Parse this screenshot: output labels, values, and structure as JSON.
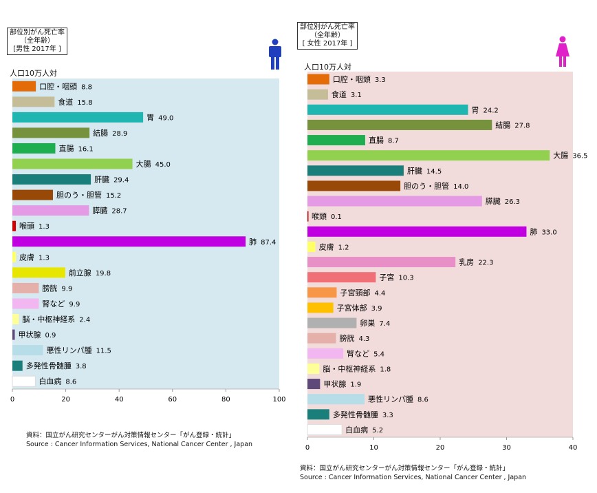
{
  "chart_data": [
    {
      "type": "bar",
      "orientation": "horizontal",
      "title": [
        "部位別がん死亡率",
        "（全年齢）",
        "[男性 2017年 ]"
      ],
      "unit_label": "人口10万人対",
      "xlim": [
        0,
        100
      ],
      "xticks": [
        0,
        20,
        40,
        60,
        80,
        100
      ],
      "background": "#d6e9f0",
      "source": [
        "資料：国立がん研究センターがん対策情報センター「がん登録・統計」",
        "Source : Cancer Information Services, National Cancer Center , Japan"
      ],
      "bars": [
        {
          "label": "口腔・咽頭",
          "value": 8.8,
          "color": "#e36c09"
        },
        {
          "label": "食道",
          "value": 15.8,
          "color": "#c4bd97"
        },
        {
          "label": "胃",
          "value": 49.0,
          "color": "#1fb5b0"
        },
        {
          "label": "結腸",
          "value": 28.9,
          "color": "#76923c"
        },
        {
          "label": "直腸",
          "value": 16.1,
          "color": "#1fae4f"
        },
        {
          "label": "大腸",
          "value": 45.0,
          "color": "#92d050"
        },
        {
          "label": "肝臓",
          "value": 29.4,
          "color": "#1a7f7a"
        },
        {
          "label": "胆のう・胆管",
          "value": 15.2,
          "color": "#984807"
        },
        {
          "label": "膵臓",
          "value": 28.7,
          "color": "#e49ae4"
        },
        {
          "label": "喉頭",
          "value": 1.3,
          "color": "#d00000"
        },
        {
          "label": "肺",
          "value": 87.4,
          "color": "#c000e0"
        },
        {
          "label": "皮膚",
          "value": 1.3,
          "color": "#ffff66"
        },
        {
          "label": "前立腺",
          "value": 19.8,
          "color": "#e6e600"
        },
        {
          "label": "膀胱",
          "value": 9.9,
          "color": "#e6b0aa"
        },
        {
          "label": "腎など",
          "value": 9.9,
          "color": "#f2b6f0"
        },
        {
          "label": "脳・中枢神経系",
          "value": 2.4,
          "color": "#ffff99"
        },
        {
          "label": "甲状腺",
          "value": 0.9,
          "color": "#5f497a"
        },
        {
          "label": "悪性リンパ腫",
          "value": 11.5,
          "color": "#b7dde8"
        },
        {
          "label": "多発性骨髄腫",
          "value": 3.8,
          "color": "#1a7f7a"
        },
        {
          "label": "白血病",
          "value": 8.6,
          "color": "#ffffff"
        }
      ]
    },
    {
      "type": "bar",
      "orientation": "horizontal",
      "title": [
        "部位別がん死亡率",
        "（全年齢）",
        "[ 女性 2017年 ]"
      ],
      "unit_label": "人口10万人対",
      "xlim": [
        0,
        40
      ],
      "xticks": [
        0,
        10,
        20,
        30,
        40
      ],
      "background": "#f2dcdb",
      "source": [
        "資料：国立がん研究センターがん対策情報センター「がん登録・統計」",
        "Source : Cancer Information Services, National Cancer Center , Japan"
      ],
      "bars": [
        {
          "label": "口腔・咽頭",
          "value": 3.3,
          "color": "#e36c09"
        },
        {
          "label": "食道",
          "value": 3.1,
          "color": "#c4bd97"
        },
        {
          "label": "胃",
          "value": 24.2,
          "color": "#1fb5b0"
        },
        {
          "label": "結腸",
          "value": 27.8,
          "color": "#76923c"
        },
        {
          "label": "直腸",
          "value": 8.7,
          "color": "#1fae4f"
        },
        {
          "label": "大腸",
          "value": 36.5,
          "color": "#92d050"
        },
        {
          "label": "肝臓",
          "value": 14.5,
          "color": "#1a7f7a"
        },
        {
          "label": "胆のう・胆管",
          "value": 14.0,
          "color": "#984807"
        },
        {
          "label": "膵臓",
          "value": 26.3,
          "color": "#e49ae4"
        },
        {
          "label": "喉頭",
          "value": 0.1,
          "color": "#d00000"
        },
        {
          "label": "肺",
          "value": 33.0,
          "color": "#c000e0"
        },
        {
          "label": "皮膚",
          "value": 1.2,
          "color": "#ffff66"
        },
        {
          "label": "乳房",
          "value": 22.3,
          "color": "#e88fc8"
        },
        {
          "label": "子宮",
          "value": 10.3,
          "color": "#f07078"
        },
        {
          "label": "子宮頸部",
          "value": 4.4,
          "color": "#f79646"
        },
        {
          "label": "子宮体部",
          "value": 3.9,
          "color": "#ffc000"
        },
        {
          "label": "卵巣",
          "value": 7.4,
          "color": "#b0b0b0"
        },
        {
          "label": "膀胱",
          "value": 4.3,
          "color": "#e6b0aa"
        },
        {
          "label": "腎など",
          "value": 5.4,
          "color": "#f2b6f0"
        },
        {
          "label": "脳・中枢神経系",
          "value": 1.8,
          "color": "#ffff99"
        },
        {
          "label": "甲状腺",
          "value": 1.9,
          "color": "#5f497a"
        },
        {
          "label": "悪性リンパ腫",
          "value": 8.6,
          "color": "#b7dde8"
        },
        {
          "label": "多発性骨髄腫",
          "value": 3.3,
          "color": "#1a7f7a"
        },
        {
          "label": "白血病",
          "value": 5.2,
          "color": "#ffffff"
        }
      ]
    }
  ],
  "icons": {
    "male_color": "#1f3fbf",
    "female_color": "#e020c8"
  }
}
